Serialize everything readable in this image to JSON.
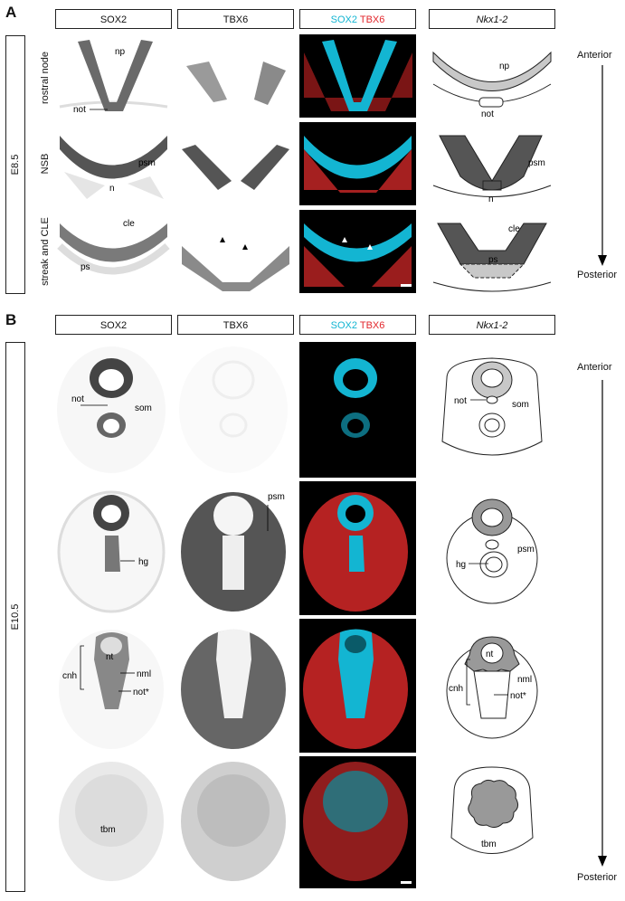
{
  "panel_a": {
    "letter": "A",
    "stage": "E8.5",
    "headers": {
      "col1": "SOX2",
      "col2": "TBX6",
      "merge_sox2": "SOX2",
      "merge_tbx6": "TBX6",
      "schematic": "Nkx1-2"
    },
    "rows": [
      "rostral node",
      "NSB",
      "streak and CLE"
    ],
    "row1_labels": {
      "np": "np",
      "not": "not"
    },
    "row2_labels": {
      "psm": "psm",
      "n": "n"
    },
    "row3_labels": {
      "cle": "cle",
      "ps": "ps"
    },
    "axis": {
      "anterior": "Anterior",
      "posterior": "Posterior"
    }
  },
  "panel_b": {
    "letter": "B",
    "stage": "E10.5",
    "headers": {
      "col1": "SOX2",
      "col2": "TBX6",
      "merge_sox2": "SOX2",
      "merge_tbx6": "TBX6",
      "schematic": "Nkx1-2"
    },
    "row1_labels": {
      "not": "not",
      "som": "som"
    },
    "row2_labels": {
      "psm": "psm",
      "hg": "hg"
    },
    "row3_labels": {
      "nt": "nt",
      "cnh": "cnh",
      "nml": "nml",
      "not_star": "not*"
    },
    "row4_labels": {
      "tbm": "tbm"
    },
    "axis": {
      "anterior": "Anterior",
      "posterior": "Posterior"
    }
  },
  "colors": {
    "cyan": "#13b5d2",
    "red": "#e2262b",
    "schematic_dark": "#555555",
    "schematic_light": "#c8c8c8"
  }
}
